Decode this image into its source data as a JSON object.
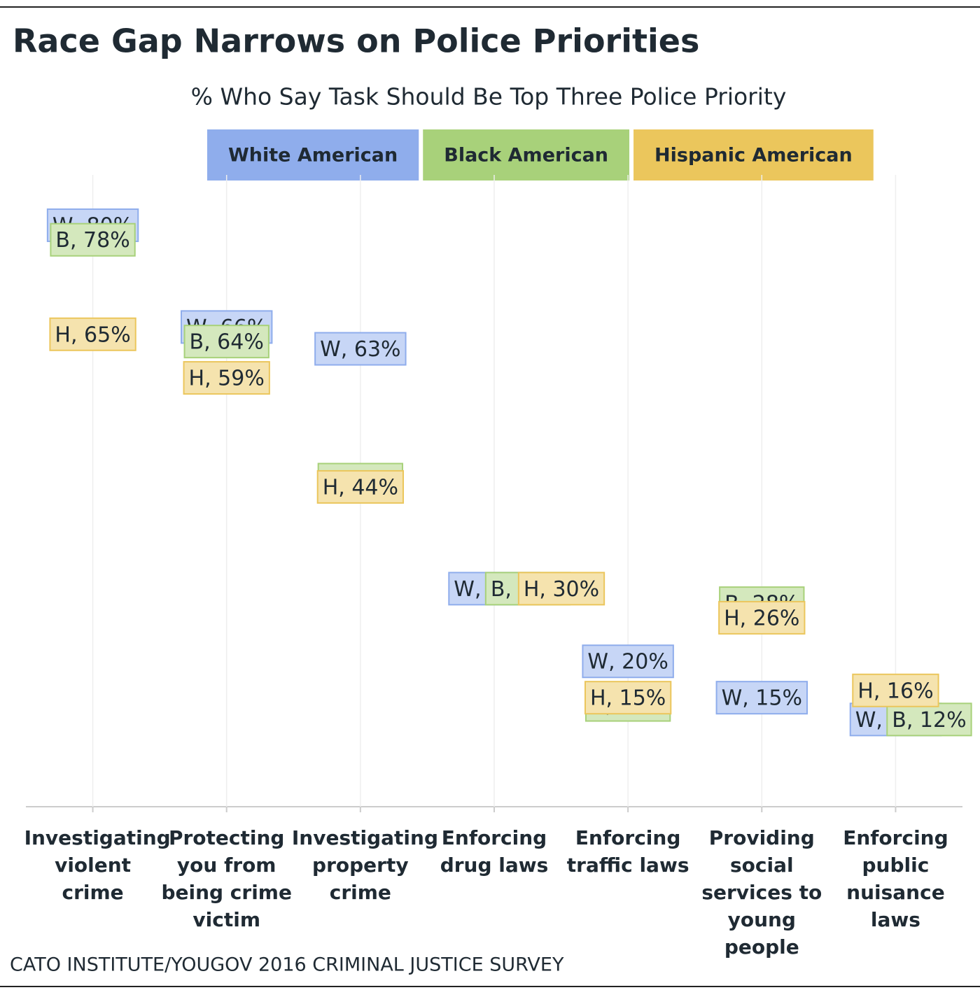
{
  "chart_data": {
    "type": "dot",
    "title": "Race Gap Narrows on Police Priorities",
    "subtitle": "% Who Say Task Should Be Top Three Police Priority",
    "source": "CATO INSTITUTE/YOUGOV 2016 CRIMINAL JUSTICE SURVEY",
    "categories": [
      "Investigating violent crime",
      "Protecting you from being crime victim",
      "Investigating property crime",
      "Enforcing drug laws",
      "Enforcing traffic laws",
      "Providing social services to young people",
      "Enforcing public nuisance laws"
    ],
    "ylim": [
      0,
      85
    ],
    "series": [
      {
        "name": "White American",
        "color": "#8fadec",
        "values": [
          80,
          66,
          63,
          30,
          20,
          15,
          12
        ],
        "value_labels": [
          "W, 80%",
          "W, 66%",
          "W, 63%",
          "W, 30%",
          "W, 20%",
          "W, 15%",
          "W, 12%"
        ]
      },
      {
        "name": "Black American",
        "color": "#a8d17a",
        "values": [
          78,
          64,
          45,
          30,
          14,
          28,
          12
        ],
        "value_labels": [
          "B, 78%",
          "B, 64%",
          "B, 45%",
          "B, 30%",
          "B, 14%",
          "B, 28%",
          "B, 12%"
        ]
      },
      {
        "name": "Hispanic American",
        "color": "#ebc65c",
        "values": [
          65,
          59,
          44,
          30,
          15,
          26,
          16
        ],
        "value_labels": [
          "H, 65%",
          "H, 59%",
          "H, 44%",
          "H, 30%",
          "H, 15%",
          "H, 26%",
          "H, 16%"
        ]
      }
    ]
  }
}
